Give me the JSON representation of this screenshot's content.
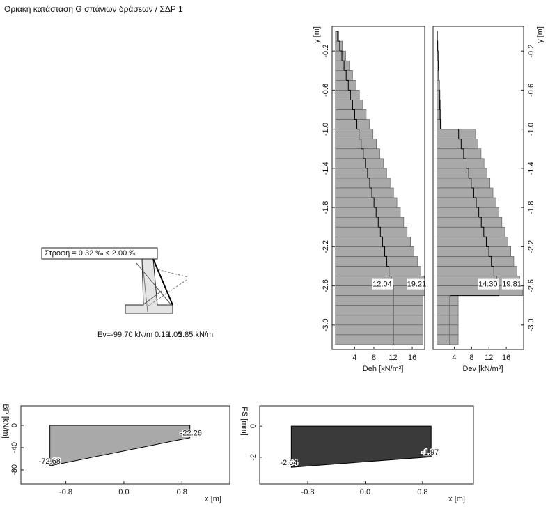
{
  "title": "Οριακή κατάσταση G σπάνιων δράσεων  /  ΣΔΡ 1",
  "sketch": {
    "rotation_label": "Στροφή = 0.32 ‰ < 2.00 ‰",
    "ev_label": "Ev=-99.70 kN/m",
    "label_a": "0.19",
    "label_b": "1.05",
    "label_c": "2.85 kN/m"
  },
  "chart_data": [
    {
      "type": "step-profile",
      "x_label": "Deh [kN/m²]",
      "y_label": "y [m]",
      "y_axis_side": "left",
      "xlim": [
        -0.7,
        18.6
      ],
      "xticks": [
        4,
        8,
        12,
        16
      ],
      "ylim": [
        -3.25,
        0.05
      ],
      "yticks": [
        -0.2,
        -0.6,
        {
          "value": -1,
          "label": "-1.0"
        },
        -1.4,
        -1.8,
        -2.2,
        -2.6,
        {
          "value": -3,
          "label": "-3.0"
        }
      ],
      "y_bins": [
        0,
        -0.1,
        -0.2,
        -0.3,
        -0.4,
        -0.5,
        -0.6,
        -0.7,
        -0.8,
        -0.9,
        -1,
        -1.1,
        -1.2,
        -1.3,
        -1.4,
        -1.5,
        -1.6,
        -1.7,
        -1.8,
        -1.9,
        -2,
        -2.1,
        -2.2,
        -2.3,
        -2.4,
        -2.5,
        -2.6,
        -2.7,
        -2.8,
        -2.9,
        -3,
        -3.1,
        -3.2
      ],
      "series": [
        {
          "color": "#a9a9a9",
          "values": [
            0.71,
            1.42,
            2.13,
            2.85,
            3.56,
            4.27,
            4.98,
            5.69,
            6.4,
            7.11,
            7.83,
            8.54,
            9.25,
            9.96,
            10.67,
            11.38,
            12.1,
            12.81,
            13.52,
            14.23,
            14.94,
            15.65,
            16.36,
            17.08,
            17.79,
            18.5,
            19.21,
            18.2,
            18.2,
            18.2,
            18.2,
            18.2
          ]
        },
        {
          "color": "#000000",
          "values": [
            0.45,
            0.89,
            1.34,
            1.78,
            2.23,
            2.68,
            3.12,
            3.57,
            4.01,
            4.46,
            4.91,
            5.35,
            5.8,
            6.24,
            6.69,
            7.14,
            7.58,
            8.03,
            8.47,
            8.92,
            9.36,
            9.81,
            10.26,
            10.7,
            11.15,
            11.59,
            12.04,
            12.04,
            12.04,
            12.04,
            12.04,
            12.04
          ]
        }
      ],
      "labeled_index": 26
    },
    {
      "type": "step-profile",
      "x_label": "Dev [kN/m²]",
      "y_label": "y [m]",
      "y_axis_side": "right",
      "xlim": [
        -0.9,
        20
      ],
      "xticks": [
        4,
        8,
        12,
        16
      ],
      "ylim": [
        -3.25,
        0.05
      ],
      "yticks": [
        -0.2,
        -0.6,
        {
          "value": -1,
          "label": "-1.0"
        },
        -1.4,
        -1.8,
        -2.2,
        -2.6,
        {
          "value": -3,
          "label": "-3.0"
        }
      ],
      "y_bins": [
        0,
        -0.1,
        -0.2,
        -0.3,
        -0.4,
        -0.5,
        -0.6,
        -0.7,
        -0.8,
        -0.9,
        -1,
        -1.1,
        -1.2,
        -1.3,
        -1.4,
        -1.5,
        -1.6,
        -1.7,
        -1.8,
        -1.9,
        -2,
        -2.1,
        -2.2,
        -2.3,
        -2.4,
        -2.5,
        -2.6,
        -2.7,
        -2.8,
        -2.9,
        -3,
        -3.1,
        -3.2
      ],
      "series": [
        {
          "color": "#a9a9a9",
          "values": [
            0.1,
            0.2,
            0.3,
            0.4,
            0.5,
            0.6,
            0.7,
            0.8,
            0.9,
            1,
            8.8,
            9.49,
            10.18,
            10.86,
            11.55,
            12.24,
            12.93,
            13.62,
            14.3,
            14.99,
            15.68,
            16.37,
            17.06,
            17.74,
            18.43,
            19.12,
            19.81,
            4.9,
            4.9,
            4.9,
            4.9,
            4.9
          ]
        },
        {
          "color": "#000000",
          "values": [
            0.08,
            0.16,
            0.24,
            0.32,
            0.4,
            0.48,
            0.56,
            0.64,
            0.72,
            0.8,
            5,
            5.58,
            6.16,
            6.74,
            7.33,
            7.91,
            8.49,
            9.07,
            9.65,
            10.23,
            10.81,
            11.39,
            11.98,
            12.56,
            13.14,
            13.72,
            14.3,
            3,
            3,
            3,
            3,
            3
          ],
          "value_labels": [
            null,
            null,
            null,
            null,
            null,
            null,
            null,
            null,
            null,
            null,
            null,
            null,
            null,
            null,
            null,
            null,
            null,
            null,
            null,
            null,
            null,
            null,
            null,
            null,
            null,
            null,
            "14.30",
            null,
            null,
            null,
            null,
            null
          ]
        }
      ],
      "labeled_index": 26
    },
    {
      "type": "area-polygon",
      "x_label": "x [m]",
      "y_label": "BP [kN/m]",
      "color": "#a9a9a9",
      "xlim": [
        -1.42,
        1.46
      ],
      "xticks": [
        -0.8,
        {
          "value": 0,
          "label": "0.0"
        },
        0.8
      ],
      "ylim": [
        -105,
        35
      ],
      "yticks": [
        0,
        -40,
        -80
      ],
      "x": [
        -1.02,
        0.91
      ],
      "values": [
        -72.68,
        -22.26
      ]
    },
    {
      "type": "area-polygon",
      "x_label": "x [m]",
      "y_label": "FS [mm]",
      "color": "#3a3a3a",
      "xlim": [
        -1.47,
        1.51
      ],
      "xticks": [
        -0.8,
        {
          "value": 0,
          "label": "0.0"
        },
        0.8
      ],
      "ylim": [
        -3.7,
        1.3
      ],
      "yticks": [
        0,
        -2
      ],
      "x": [
        -1.03,
        0.92
      ],
      "values": [
        -2.64,
        -1.97
      ]
    }
  ]
}
